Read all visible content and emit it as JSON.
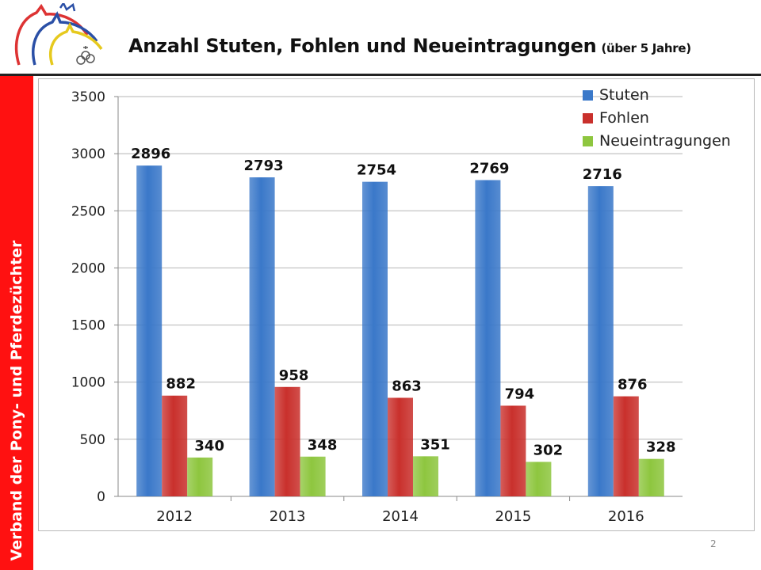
{
  "title": "Anzahl Stuten, Fohlen und Neueintragungen",
  "subtitle": "(über 5 Jahre)",
  "sidebar_text": "Verband der Pony- und Pferdezüchter",
  "page_number": "2",
  "colors": {
    "sidebar": "#ff1111",
    "stuten": "#3a78c9",
    "fohlen": "#c9302c",
    "neueintragungen": "#8ec63f"
  },
  "chart_data": {
    "type": "bar",
    "categories": [
      "2012",
      "2013",
      "2014",
      "2015",
      "2016"
    ],
    "series": [
      {
        "name": "Stuten",
        "values": [
          2896,
          2793,
          2754,
          2769,
          2716
        ]
      },
      {
        "name": "Fohlen",
        "values": [
          882,
          958,
          863,
          794,
          876
        ]
      },
      {
        "name": "Neueintragungen",
        "values": [
          340,
          348,
          351,
          302,
          328
        ]
      }
    ],
    "ylim": [
      0,
      3500
    ],
    "yticks": [
      "0",
      "500",
      "1000",
      "1500",
      "2000",
      "2500",
      "3000",
      "3500"
    ],
    "grid": true,
    "legend": "top-right"
  }
}
